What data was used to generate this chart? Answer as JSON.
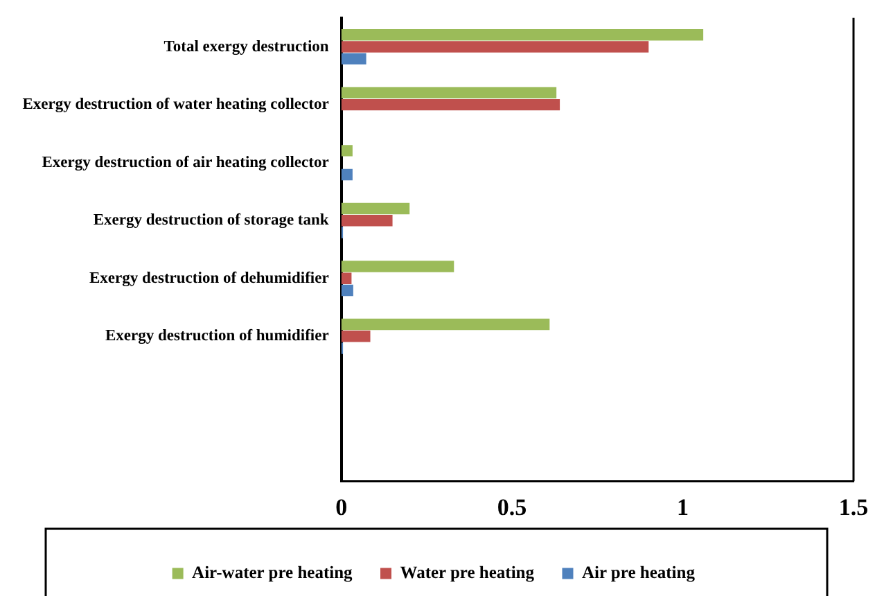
{
  "chart_data": {
    "type": "bar",
    "orientation": "horizontal",
    "categories": [
      "Total exergy destruction",
      "Exergy destruction of water heating collector",
      "Exergy destruction of air heating collector",
      "Exergy destruction of storage tank",
      "Exergy destruction of dehumidifier",
      "Exergy destruction of humidifier",
      null,
      null
    ],
    "series": [
      {
        "name": "Air-water pre heating",
        "color": "#9bbb59",
        "values": [
          1.06,
          0.63,
          0.033,
          0.2,
          0.33,
          0.61,
          null,
          null
        ]
      },
      {
        "name": "Water pre heating",
        "color": "#c0504d",
        "values": [
          0.9,
          0.64,
          0,
          0.15,
          0.03,
          0.085,
          null,
          null
        ]
      },
      {
        "name": "Air pre heating",
        "color": "#4f81bd",
        "values": [
          0.073,
          0,
          0.033,
          0.005,
          0.035,
          0.005,
          null,
          null
        ]
      }
    ],
    "xlim": [
      0,
      1.5
    ],
    "xticks": [
      0,
      0.5,
      1,
      1.5
    ],
    "grid": false,
    "legend": "bottom"
  }
}
